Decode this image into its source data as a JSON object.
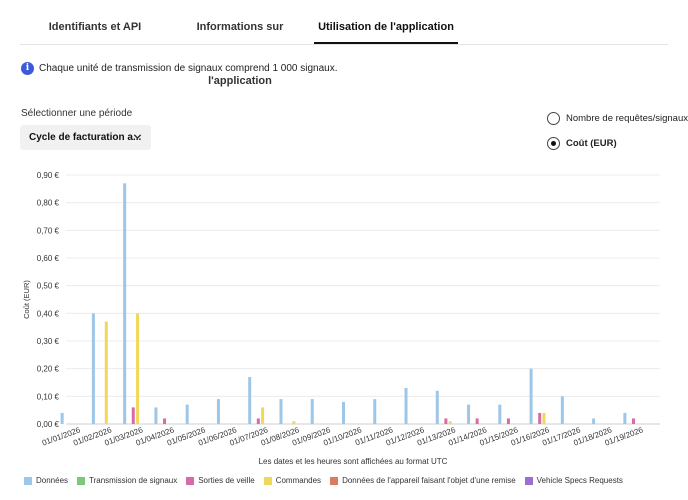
{
  "tabs": [
    {
      "label": "Identifiants et API",
      "active": false
    },
    {
      "label": "Informations sur l'application",
      "active": false
    },
    {
      "label": "Utilisation de l'application",
      "active": true
    }
  ],
  "info": {
    "icon": "info-icon",
    "icon_glyph": "i",
    "text": "Chaque unité de transmission de signaux comprend 1 000 signaux."
  },
  "period": {
    "label": "Sélectionner une période",
    "selected": "Cycle de facturation a..."
  },
  "metric_options": [
    {
      "label": "Nombre de requêtes/signaux",
      "selected": false
    },
    {
      "label": "Coût (EUR)",
      "selected": true
    }
  ],
  "chart_data": {
    "type": "bar",
    "ylabel": "Coût (EUR)",
    "xlabel": "Les dates et les heures sont affichées au format UTC",
    "ylim": [
      0,
      0.9
    ],
    "yticks": [
      "0,00 €",
      "0,10 €",
      "0,20 €",
      "0,30 €",
      "0,40 €",
      "0,50 €",
      "0,60 €",
      "0,70 €",
      "0,80 €",
      "0,90 €"
    ],
    "grid": true,
    "legend_placement": "bottom",
    "categories": [
      "01/01/2026",
      "01/02/2026",
      "01/03/2026",
      "01/04/2026",
      "01/05/2026",
      "01/06/2026",
      "01/07/2026",
      "01/08/2026",
      "01/09/2026",
      "01/10/2026",
      "01/11/2026",
      "01/12/2026",
      "01/13/2026",
      "01/14/2026",
      "01/15/2026",
      "01/16/2026",
      "01/17/2026",
      "01/18/2026",
      "01/19/2026"
    ],
    "series": [
      {
        "name": "Données",
        "color": "#9cc7e8",
        "values": [
          0.04,
          0.4,
          0.87,
          0.06,
          0.07,
          0.09,
          0.17,
          0.09,
          0.09,
          0.08,
          0.09,
          0.13,
          0.12,
          0.07,
          0.07,
          0.2,
          0.1,
          0.02,
          0.04
        ]
      },
      {
        "name": "Transmission de signaux",
        "color": "#7cc97a",
        "values": [
          0,
          0,
          0,
          0,
          0,
          0,
          0,
          0,
          0,
          0,
          0,
          0,
          0,
          0,
          0,
          0,
          0,
          0,
          0
        ]
      },
      {
        "name": "Sorties de veille",
        "color": "#d96aa6",
        "values": [
          0,
          0,
          0.06,
          0.02,
          0,
          0,
          0.02,
          0,
          0,
          0,
          0,
          0,
          0.02,
          0.02,
          0.02,
          0.04,
          0,
          0,
          0.02
        ]
      },
      {
        "name": "Commandes",
        "color": "#f1d85a",
        "values": [
          0,
          0.37,
          0.4,
          0,
          0,
          0,
          0.06,
          0.01,
          0,
          0,
          0,
          0,
          0.01,
          0,
          0,
          0.04,
          0,
          0,
          0
        ]
      },
      {
        "name": "Données de l'appareil faisant l'objet d'une remise",
        "color": "#e07a5f",
        "values": [
          0,
          0,
          0,
          0,
          0,
          0,
          0,
          0,
          0,
          0,
          0,
          0,
          0,
          0,
          0,
          0,
          0,
          0,
          0
        ]
      },
      {
        "name": "Vehicle Specs Requests",
        "color": "#9b6fd1",
        "values": [
          0,
          0,
          0,
          0,
          0,
          0,
          0,
          0,
          0,
          0,
          0,
          0,
          0,
          0,
          0,
          0,
          0,
          0,
          0
        ]
      }
    ]
  }
}
